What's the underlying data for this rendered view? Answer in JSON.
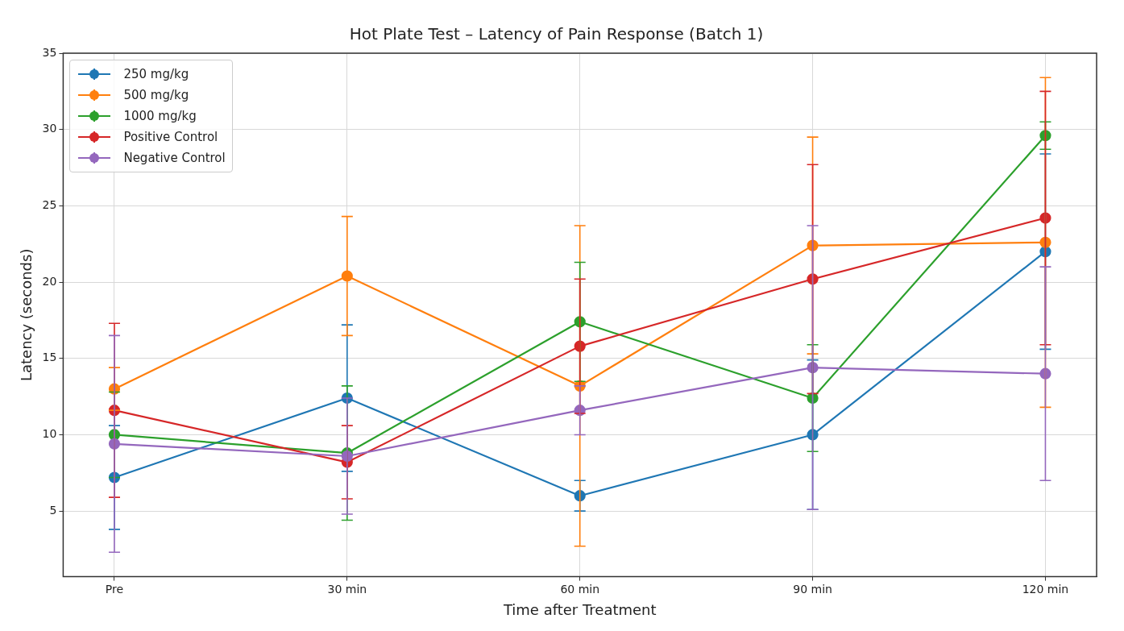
{
  "chart_data": {
    "type": "line",
    "title": "Hot Plate Test – Latency of Pain Response (Batch 1)",
    "xlabel": "Time after Treatment",
    "ylabel": "Latency (seconds)",
    "categories": [
      "Pre",
      "30 min",
      "60 min",
      "90 min",
      "120 min"
    ],
    "series": [
      {
        "name": "250 mg/kg",
        "color": "#1f77b4",
        "values": [
          7.2,
          12.4,
          6.0,
          10.0,
          22.0
        ],
        "errors": [
          3.4,
          4.8,
          1.0,
          4.9,
          6.4
        ]
      },
      {
        "name": "500 mg/kg",
        "color": "#ff7f0e",
        "values": [
          13.0,
          20.4,
          13.2,
          22.4,
          22.6
        ],
        "errors": [
          1.4,
          3.9,
          10.5,
          7.1,
          10.8
        ]
      },
      {
        "name": "1000 mg/kg",
        "color": "#2ca02c",
        "values": [
          10.0,
          8.8,
          17.4,
          12.4,
          29.6
        ],
        "errors": [
          2.8,
          4.4,
          3.9,
          3.5,
          0.9
        ]
      },
      {
        "name": "Positive Control",
        "color": "#d62728",
        "values": [
          11.6,
          8.2,
          15.8,
          20.2,
          24.2
        ],
        "errors": [
          5.7,
          2.4,
          4.4,
          7.5,
          8.3
        ]
      },
      {
        "name": "Negative Control",
        "color": "#9467bd",
        "values": [
          9.4,
          8.6,
          11.6,
          14.4,
          14.0
        ],
        "errors": [
          7.1,
          3.8,
          1.6,
          9.3,
          7.0
        ]
      }
    ],
    "ylim": [
      0.7,
      35
    ],
    "yticks": [
      5,
      10,
      15,
      20,
      25,
      30,
      35
    ],
    "grid": true,
    "legend": "top left",
    "marker": "circle",
    "line_style": "solid"
  }
}
